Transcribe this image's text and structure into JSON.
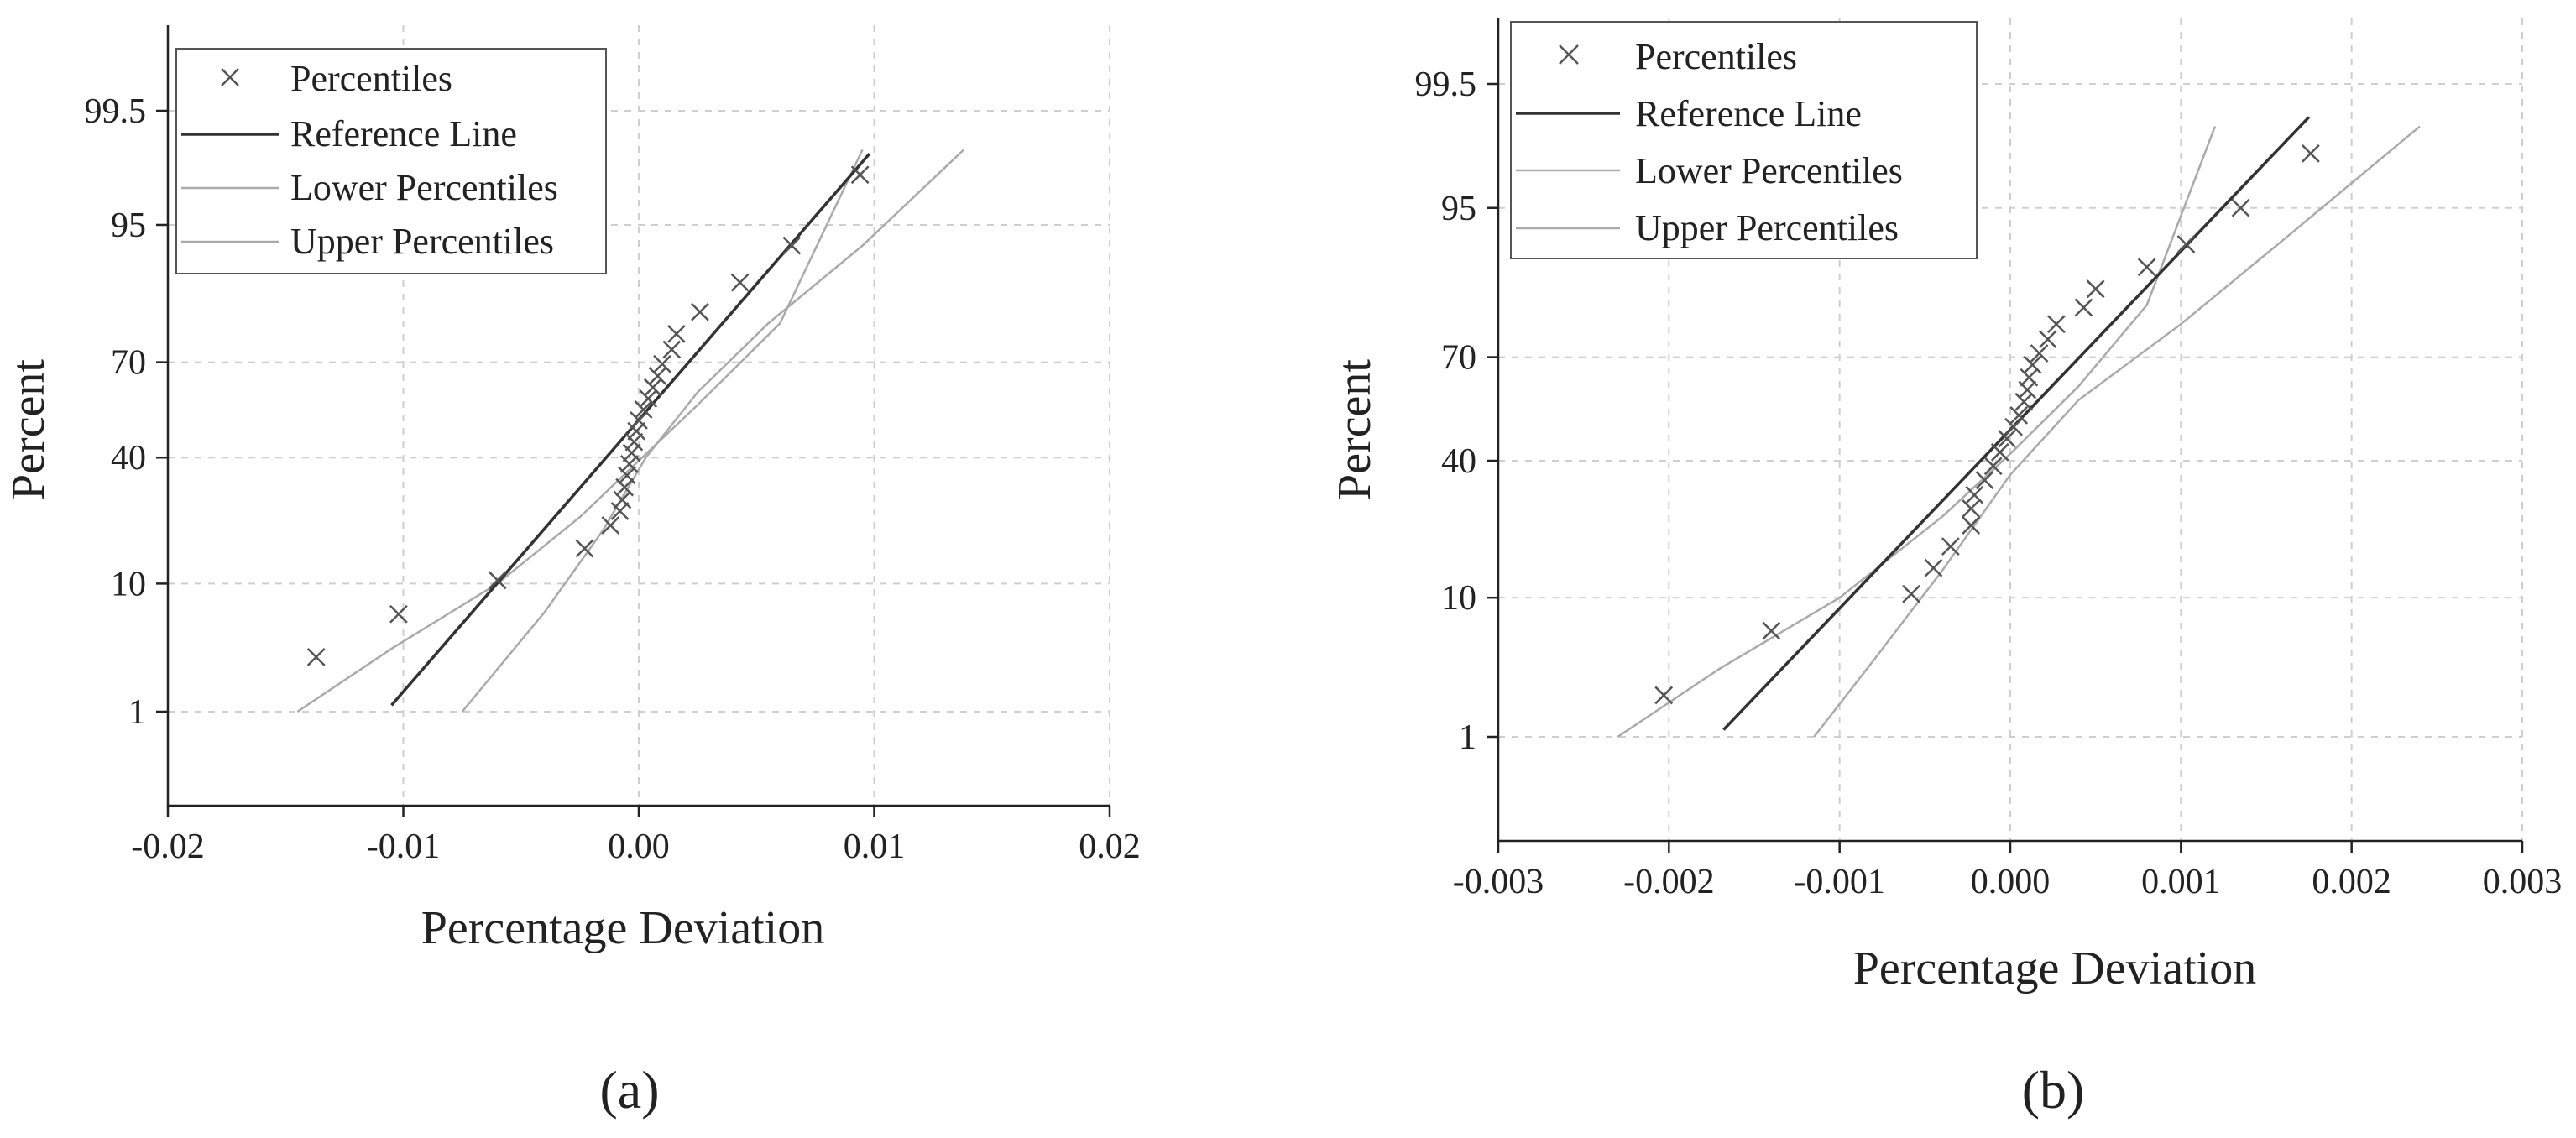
{
  "chart_data": [
    {
      "type": "scatter",
      "subplot": "a",
      "caption": "(a)",
      "xlabel": "Percentage Deviation",
      "ylabel": "Percent",
      "xlim": [
        -0.02,
        0.02
      ],
      "xticks": [
        -0.02,
        -0.01,
        0.0,
        0.01,
        0.02
      ],
      "xtick_labels": [
        "-0.02",
        "-0.01",
        "0.00",
        "0.01",
        "0.02"
      ],
      "yticks": [
        1,
        10,
        40,
        70,
        95,
        99.5
      ],
      "ytick_labels": [
        "1",
        "10",
        "40",
        "70",
        "95",
        "99.5"
      ],
      "legend": [
        "Percentiles",
        "Reference Line",
        "Lower Percentiles",
        "Upper Percentiles"
      ],
      "legend_position": "top-left",
      "grid": true,
      "colors": {
        "points": "#555555",
        "reference": "#333333",
        "bands": "#aaaaaa"
      },
      "series": [
        {
          "name": "Percentiles",
          "kind": "points",
          "x": [
            -0.0137,
            -0.0102,
            -0.006,
            -0.0023,
            -0.0012,
            -0.0008,
            -0.0007,
            -0.0006,
            -0.0005,
            -0.0004,
            -0.0003,
            -0.0002,
            -0.0001,
            0.0,
            0.0002,
            0.0004,
            0.0006,
            0.0008,
            0.001,
            0.0014,
            0.0016,
            0.0026,
            0.0043,
            0.0065,
            0.0094
          ],
          "y": [
            3,
            6.3,
            10.5,
            16,
            21,
            24.5,
            27.5,
            31,
            34.5,
            38,
            41.5,
            45,
            48.5,
            52,
            55.5,
            59,
            62.5,
            66,
            69.5,
            73.5,
            77.5,
            82.5,
            88,
            93,
            98
          ]
        },
        {
          "name": "Reference Line",
          "kind": "line",
          "x": [
            -0.0105,
            0.0098
          ],
          "y": [
            1.15,
            98.7
          ]
        },
        {
          "name": "Lower Percentiles",
          "kind": "line",
          "x": [
            -0.0145,
            -0.0105,
            -0.006,
            -0.0025,
            0.0,
            0.0025,
            0.006,
            0.0095
          ],
          "y": [
            1.0,
            3.5,
            10,
            23,
            39,
            57,
            80,
            98.8
          ]
        },
        {
          "name": "Upper Percentiles",
          "kind": "line",
          "x": [
            -0.0075,
            -0.004,
            -0.0015,
            0.0003,
            0.0025,
            0.0055,
            0.0095,
            0.0138
          ],
          "y": [
            1.0,
            6.5,
            20,
            40,
            61,
            80,
            93,
            98.8
          ]
        }
      ]
    },
    {
      "type": "scatter",
      "subplot": "b",
      "caption": "(b)",
      "xlabel": "Percentage Deviation",
      "ylabel": "Percent",
      "xlim": [
        -0.003,
        0.003
      ],
      "xticks": [
        -0.003,
        -0.002,
        -0.001,
        0.0,
        0.001,
        0.002,
        0.003
      ],
      "xtick_labels": [
        "-0.003",
        "-0.002",
        "-0.001",
        "0.000",
        "0.001",
        "0.002",
        "0.003"
      ],
      "yticks": [
        1,
        10,
        40,
        70,
        95,
        99.5
      ],
      "ytick_labels": [
        "1",
        "10",
        "40",
        "70",
        "95",
        "99.5"
      ],
      "legend": [
        "Percentiles",
        "Reference Line",
        "Lower Percentiles",
        "Upper Percentiles"
      ],
      "legend_position": "top-left",
      "grid": true,
      "colors": {
        "points": "#555555",
        "reference": "#333333",
        "bands": "#aaaaaa"
      },
      "series": [
        {
          "name": "Percentiles",
          "kind": "points",
          "x": [
            -0.00203,
            -0.0014,
            -0.00058,
            -0.00045,
            -0.00035,
            -0.00023,
            -0.00023,
            -0.00021,
            -0.00015,
            -0.0001,
            -6e-05,
            -2e-05,
            2e-05,
            5e-05,
            8e-05,
            0.0001,
            0.00011,
            0.00013,
            0.00017,
            0.00022,
            0.00027,
            0.00043,
            0.0005,
            0.0008,
            0.00103,
            0.00135,
            0.00176
          ],
          "y": [
            2.2,
            6.3,
            10.5,
            14.5,
            18.5,
            23,
            27,
            30.5,
            34.5,
            38.5,
            42.5,
            46.5,
            50,
            53.5,
            57.5,
            61,
            64.5,
            68,
            71,
            74.5,
            78,
            81.5,
            85,
            88.5,
            91.5,
            95,
            98
          ]
        },
        {
          "name": "Reference Line",
          "kind": "line",
          "x": [
            -0.00168,
            0.00175
          ],
          "y": [
            1.15,
            99.0
          ]
        },
        {
          "name": "Lower Percentiles",
          "kind": "line",
          "x": [
            -0.0023,
            -0.0017,
            -0.001,
            -0.0004,
            0.0,
            0.0004,
            0.0008,
            0.0012
          ],
          "y": [
            1.0,
            3.5,
            10,
            25,
            42,
            62,
            82,
            98.8
          ]
        },
        {
          "name": "Upper Percentiles",
          "kind": "line",
          "x": [
            -0.00115,
            -0.0008,
            -0.0004,
            0.0,
            0.0004,
            0.001,
            0.0016,
            0.0024
          ],
          "y": [
            1.0,
            4,
            14,
            36,
            58,
            78,
            92,
            98.8
          ]
        }
      ]
    }
  ]
}
